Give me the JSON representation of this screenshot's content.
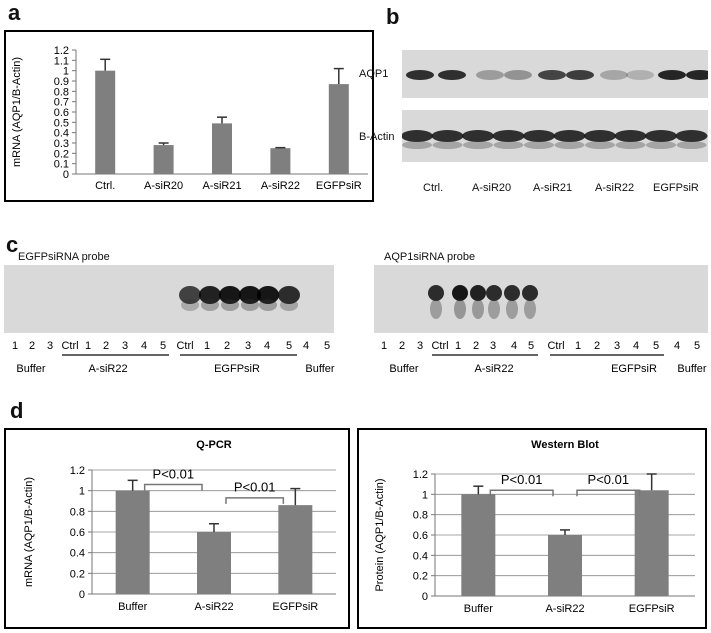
{
  "panels": {
    "a": {
      "label": "a"
    },
    "b": {
      "label": "b",
      "bands": [
        "AQP1",
        "B-Actin"
      ],
      "lanes": [
        "Ctrl.",
        "A-siR20",
        "A-siR21",
        "A-siR22",
        "EGFPsiR"
      ]
    },
    "c": {
      "label": "c",
      "left": {
        "probe": "EGFPsiRNA probe",
        "lanes": [
          "1",
          "2",
          "3",
          "Ctrl",
          "1",
          "2",
          "3",
          "4",
          "5",
          "Ctrl",
          "1",
          "2",
          "3",
          "4",
          "5",
          "4",
          "5"
        ],
        "groups": [
          "Buffer",
          "A-siR22",
          "EGFPsiR",
          "Buffer"
        ]
      },
      "right": {
        "probe": "AQP1siRNA probe",
        "lanes": [
          "1",
          "2",
          "3",
          "Ctrl",
          "1",
          "2",
          "3",
          "4",
          "5",
          "Ctrl",
          "1",
          "2",
          "3",
          "4",
          "5",
          "4",
          "5"
        ],
        "groups": [
          "Buffer",
          "A-siR22",
          "EGFPsiR",
          "Buffer"
        ]
      }
    },
    "d": {
      "label": "d"
    }
  },
  "chart_data": [
    {
      "id": "a",
      "type": "bar",
      "title": "",
      "categories": [
        "Ctrl.",
        "A-siR20",
        "A-siR21",
        "A-siR22",
        "EGFPsiR"
      ],
      "values": [
        1.0,
        0.28,
        0.49,
        0.25,
        0.87
      ],
      "errors": [
        0.11,
        0.02,
        0.06,
        0.005,
        0.15
      ],
      "ylabel": "mRNA (AQP1/B-Actin)",
      "ylim": [
        0,
        1.2
      ],
      "yticks": [
        "0",
        "0.1",
        "0.2",
        "0.3",
        "0.4",
        "0.5",
        "0.6",
        "0.7",
        "0.8",
        "0.9",
        "1",
        "1.1",
        "1.2"
      ],
      "grid": false,
      "color": "#7f7f7f"
    },
    {
      "id": "d1",
      "type": "bar",
      "title": "Q-PCR",
      "categories": [
        "Buffer",
        "A-siR22",
        "EGFPsiR"
      ],
      "values": [
        1.0,
        0.6,
        0.86
      ],
      "errors": [
        0.1,
        0.08,
        0.16
      ],
      "ylabel": "mRNA (AQP1/B-Actin)",
      "ylim": [
        0,
        1.2
      ],
      "yticks": [
        "0",
        "0.2",
        "0.4",
        "0.6",
        "0.8",
        "1",
        "1.2"
      ],
      "grid": true,
      "color": "#7f7f7f",
      "annotations": [
        "P<0.01",
        "P<0.01"
      ]
    },
    {
      "id": "d2",
      "type": "bar",
      "title": "Western Blot",
      "categories": [
        "Buffer",
        "A-siR22",
        "EGFPsiR"
      ],
      "values": [
        1.0,
        0.6,
        1.04
      ],
      "errors": [
        0.08,
        0.05,
        0.16
      ],
      "ylabel": "Protein (AQP1/B-Actin)",
      "ylim": [
        0,
        1.2
      ],
      "yticks": [
        "0",
        "0.2",
        "0.4",
        "0.6",
        "0.8",
        "1",
        "1.2"
      ],
      "grid": true,
      "color": "#7f7f7f",
      "annotations": [
        "P<0.01",
        "P<0.01"
      ]
    }
  ]
}
